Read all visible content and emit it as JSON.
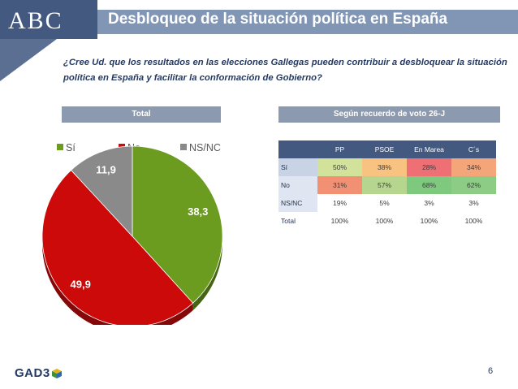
{
  "header": {
    "logo": "ABC",
    "title": "Desbloqueo de la situación política en España"
  },
  "question": "¿Cree Ud. que los resultados en las elecciones Gallegas pueden contribuir a desbloquear la situación política en España y facilitar la conformación de Gobierno?",
  "sections": {
    "left": "Total",
    "right": "Según recuerdo de voto 26-J"
  },
  "chart_data": [
    {
      "type": "pie",
      "categories": [
        "Sí",
        "No",
        "NS/NC"
      ],
      "values": [
        38.3,
        49.9,
        11.9
      ],
      "value_labels": [
        "38,3",
        "49,9",
        "11,9"
      ],
      "colors": [
        "#6b9c1f",
        "#cc0a0a",
        "#8a8a8a"
      ],
      "legend": "top"
    },
    {
      "type": "table",
      "columns": [
        "PP",
        "PSOE",
        "En Marea",
        "C´s"
      ],
      "rows": [
        {
          "label": "Sí",
          "values": [
            "50%",
            "38%",
            "28%",
            "34%"
          ],
          "colors": [
            "#d2e29a",
            "#f8c381",
            "#ee6f74",
            "#f5a57a"
          ]
        },
        {
          "label": "No",
          "values": [
            "31%",
            "57%",
            "68%",
            "62%"
          ],
          "colors": [
            "#f29073",
            "#b6d690",
            "#7fc97f",
            "#8ccc84"
          ]
        },
        {
          "label": "NS/NC",
          "values": [
            "19%",
            "5%",
            "3%",
            "3%"
          ],
          "colors": [
            "#ffffff",
            "#ffffff",
            "#ffffff",
            "#ffffff"
          ]
        },
        {
          "label": "Total",
          "values": [
            "100%",
            "100%",
            "100%",
            "100%"
          ],
          "colors": [
            "#ffffff",
            "#ffffff",
            "#ffffff",
            "#ffffff"
          ]
        }
      ]
    }
  ],
  "footer": {
    "brand": "GAD3",
    "page": "6"
  }
}
